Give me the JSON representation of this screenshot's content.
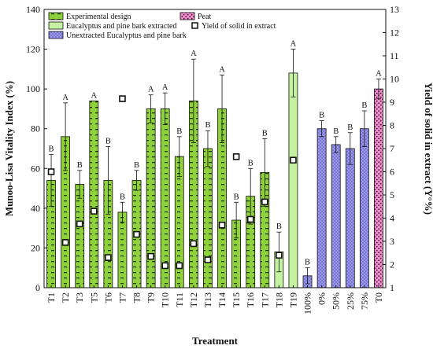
{
  "colors": {
    "experimental": "#8fd13a",
    "extracted": "#c4f2a0",
    "unextracted": "#9a98ee",
    "peat": "#f28fd0",
    "stroke": "#111111"
  },
  "chart_data": {
    "type": "bar",
    "xlabel": "Treatment",
    "ylabel": "Munoo-Lisa Vitality Index (%)",
    "y2label": "Yield of solid in extract (Y°%)",
    "ylim": [
      0,
      140
    ],
    "y2lim": [
      1,
      13
    ],
    "yticks": [
      0,
      20,
      40,
      60,
      80,
      100,
      120,
      140
    ],
    "y2ticks": [
      1,
      2,
      3,
      4,
      5,
      6,
      7,
      8,
      9,
      10,
      11,
      12,
      13
    ],
    "categories": [
      "T1",
      "T2",
      "T3",
      "T5",
      "T6",
      "T7",
      "T8",
      "T9",
      "T10",
      "T11",
      "T12",
      "T13",
      "T14",
      "T15",
      "T16",
      "T17",
      "T18",
      "T19",
      "100%",
      "0%",
      "50%",
      "25%",
      "75%",
      "T0"
    ],
    "groups": [
      "experimental",
      "experimental",
      "experimental",
      "experimental",
      "experimental",
      "experimental",
      "experimental",
      "experimental",
      "experimental",
      "experimental",
      "experimental",
      "experimental",
      "experimental",
      "experimental",
      "experimental",
      "experimental",
      "extracted",
      "extracted",
      "unextracted",
      "unextracted",
      "unextracted",
      "unextracted",
      "unextracted",
      "peat"
    ],
    "values": [
      54,
      76,
      52,
      94,
      54,
      38,
      54,
      90,
      90,
      66,
      94,
      70,
      90,
      34,
      46,
      58,
      18,
      108,
      6,
      80,
      72,
      70,
      80,
      100
    ],
    "errors": [
      13,
      17,
      7,
      0,
      17,
      5,
      5,
      7,
      8,
      10,
      21,
      9,
      17,
      9,
      14,
      17,
      10,
      12,
      4,
      4,
      4,
      8,
      9,
      5
    ],
    "letters": [
      "B",
      "A",
      "B",
      "A",
      "B",
      "B",
      "B",
      "A",
      "A",
      "B",
      "A",
      "B",
      "A",
      "B",
      "B",
      "B",
      "B",
      "A",
      "B",
      "B",
      "B",
      "B",
      "B",
      "A"
    ],
    "yield_series": {
      "name": "Yield of solid in extract",
      "values": [
        6.0,
        2.95,
        3.75,
        4.3,
        2.3,
        9.15,
        3.3,
        2.35,
        1.95,
        1.95,
        2.9,
        2.2,
        3.7,
        6.65,
        3.95,
        4.7,
        2.4,
        6.5,
        null,
        null,
        null,
        null,
        null,
        null
      ]
    },
    "legend": [
      {
        "key": "experimental",
        "label": "Experimental design"
      },
      {
        "key": "extracted",
        "label": "Eucalyptus and pine bark extracted"
      },
      {
        "key": "unextracted",
        "label": "Unextracted Eucalyptus and pine bark"
      },
      {
        "key": "peat",
        "label": "Peat"
      },
      {
        "key": "yield",
        "label": "Yield of solid in extract"
      }
    ]
  }
}
